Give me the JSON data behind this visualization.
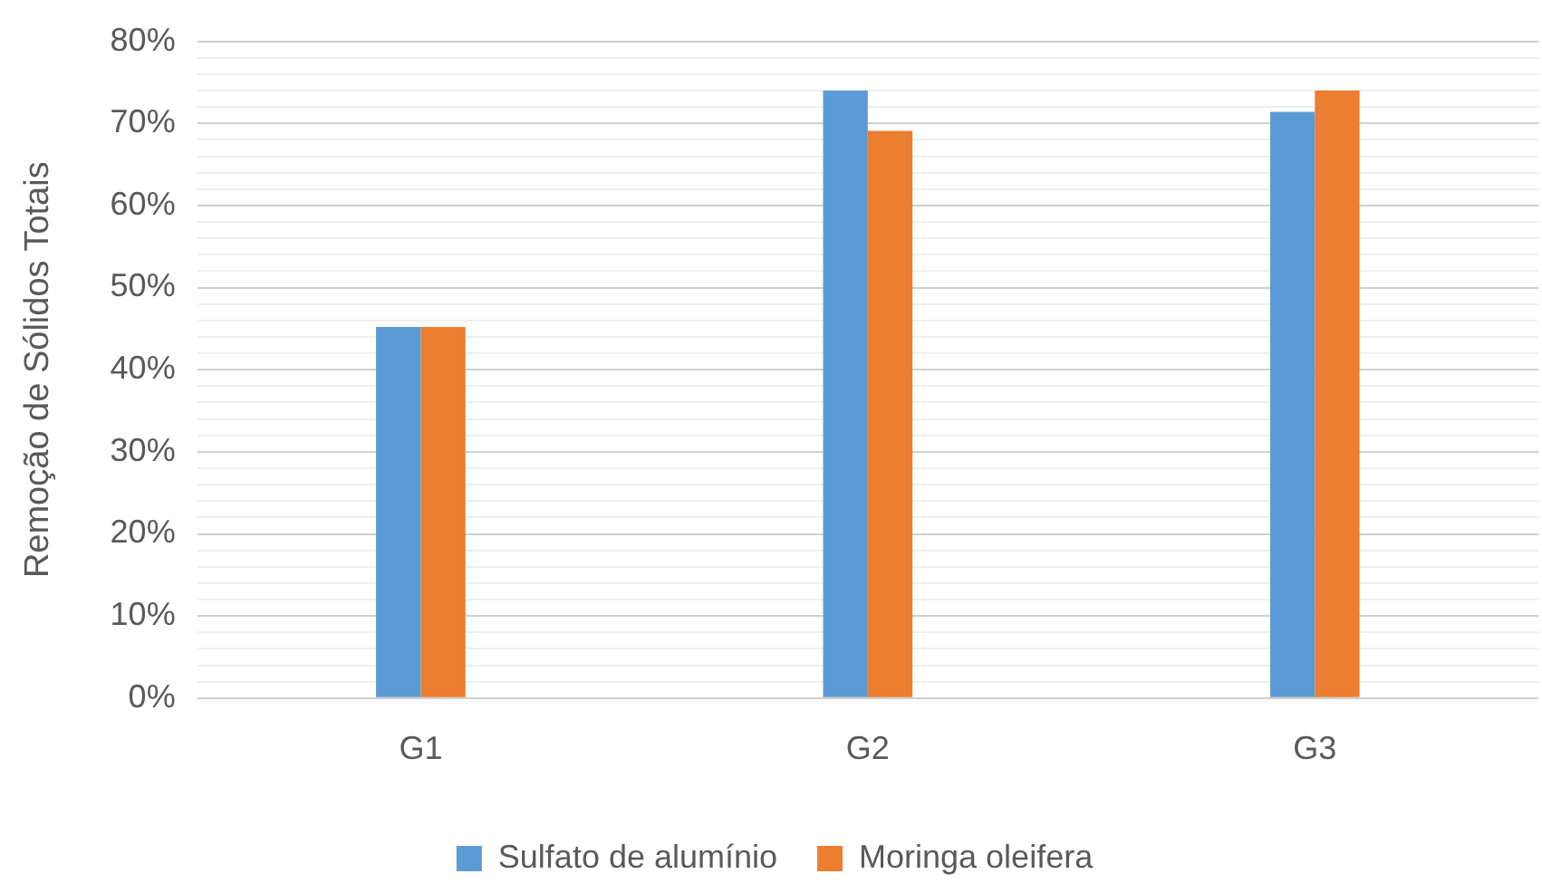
{
  "chart_data": {
    "type": "bar",
    "ylabel": "Remoção de Sólidos Totais",
    "categories": [
      "G1",
      "G2",
      "G3"
    ],
    "series": [
      {
        "name": "Sulfato de alumínio",
        "color": "#5b9bd5",
        "values": [
          45.2,
          74,
          71.4
        ]
      },
      {
        "name": "Moringa oleifera",
        "color": "#ed7d31",
        "values": [
          45.2,
          69.1,
          74
        ]
      }
    ],
    "ylim": [
      0,
      80
    ],
    "yticks": [
      {
        "value": 0,
        "label": "0%"
      },
      {
        "value": 2,
        "label": null
      },
      {
        "value": 4,
        "label": null
      },
      {
        "value": 6,
        "label": null
      },
      {
        "value": 8,
        "label": null
      },
      {
        "value": 10,
        "label": "10%"
      },
      {
        "value": 12,
        "label": null
      },
      {
        "value": 14,
        "label": null
      },
      {
        "value": 16,
        "label": null
      },
      {
        "value": 18,
        "label": null
      },
      {
        "value": 20,
        "label": "20%"
      },
      {
        "value": 22,
        "label": null
      },
      {
        "value": 24,
        "label": null
      },
      {
        "value": 26,
        "label": null
      },
      {
        "value": 28,
        "label": null
      },
      {
        "value": 30,
        "label": "30%"
      },
      {
        "value": 32,
        "label": null
      },
      {
        "value": 34,
        "label": null
      },
      {
        "value": 36,
        "label": null
      },
      {
        "value": 38,
        "label": null
      },
      {
        "value": 40,
        "label": "40%"
      },
      {
        "value": 42,
        "label": null
      },
      {
        "value": 44,
        "label": null
      },
      {
        "value": 46,
        "label": null
      },
      {
        "value": 48,
        "label": null
      },
      {
        "value": 50,
        "label": "50%"
      },
      {
        "value": 52,
        "label": null
      },
      {
        "value": 54,
        "label": null
      },
      {
        "value": 56,
        "label": null
      },
      {
        "value": 58,
        "label": null
      },
      {
        "value": 60,
        "label": "60%"
      },
      {
        "value": 62,
        "label": null
      },
      {
        "value": 64,
        "label": null
      },
      {
        "value": 66,
        "label": null
      },
      {
        "value": 68,
        "label": null
      },
      {
        "value": 70,
        "label": "70%"
      },
      {
        "value": 72,
        "label": null
      },
      {
        "value": 74,
        "label": null
      },
      {
        "value": 76,
        "label": null
      },
      {
        "value": 78,
        "label": null
      },
      {
        "value": 80,
        "label": "80%"
      }
    ],
    "grid": "y",
    "legend": "bottom"
  }
}
